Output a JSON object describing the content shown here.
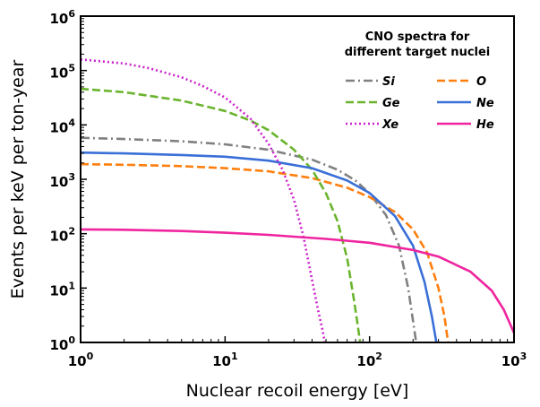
{
  "chart_data": {
    "type": "line",
    "x_scale": "log",
    "y_scale": "log",
    "xlabel": "Nuclear recoil energy [eV]",
    "ylabel": "Events per keV per ton-year",
    "xlim": [
      1,
      1000
    ],
    "ylim": [
      1,
      1000000
    ],
    "x_ticks": [
      {
        "value": 1,
        "base": "10",
        "exp": "0"
      },
      {
        "value": 10,
        "base": "10",
        "exp": "1"
      },
      {
        "value": 100,
        "base": "10",
        "exp": "2"
      },
      {
        "value": 1000,
        "base": "10",
        "exp": "3"
      }
    ],
    "y_ticks": [
      {
        "value": 1,
        "base": "10",
        "exp": "0"
      },
      {
        "value": 10,
        "base": "10",
        "exp": "1"
      },
      {
        "value": 100,
        "base": "10",
        "exp": "2"
      },
      {
        "value": 1000,
        "base": "10",
        "exp": "3"
      },
      {
        "value": 10000,
        "base": "10",
        "exp": "4"
      },
      {
        "value": 100000,
        "base": "10",
        "exp": "5"
      },
      {
        "value": 1000000,
        "base": "10",
        "exp": "6"
      }
    ],
    "legend": {
      "title_line1": "CNO spectra for",
      "title_line2": "different target nuclei",
      "placement": "top-right"
    },
    "series": [
      {
        "name": "Si",
        "color": "#808080",
        "dash": "dashdot",
        "x": [
          1,
          2,
          5,
          10,
          20,
          40,
          60,
          80,
          100,
          130,
          160,
          185,
          200,
          210
        ],
        "y": [
          5800,
          5500,
          5000,
          4400,
          3500,
          2300,
          1500,
          950,
          550,
          220,
          60,
          10,
          2.5,
          1
        ]
      },
      {
        "name": "O",
        "color": "#ff7f0e",
        "dash": "dashed",
        "x": [
          1,
          2,
          5,
          10,
          20,
          40,
          70,
          100,
          150,
          200,
          250,
          300,
          330,
          350
        ],
        "y": [
          1900,
          1850,
          1750,
          1600,
          1400,
          1050,
          700,
          470,
          250,
          120,
          45,
          10,
          3,
          1
        ]
      },
      {
        "name": "Ge",
        "color": "#6ab42d",
        "dash": "dashed",
        "x": [
          1,
          2,
          5,
          10,
          15,
          20,
          30,
          40,
          50,
          60,
          70,
          78,
          83,
          86
        ],
        "y": [
          46000,
          40000,
          28000,
          18000,
          12000,
          8000,
          3500,
          1500,
          550,
          170,
          35,
          6,
          2,
          1
        ]
      },
      {
        "name": "Ne",
        "color": "#3a6fd8",
        "dash": "solid",
        "x": [
          1,
          2,
          5,
          10,
          20,
          40,
          70,
          100,
          150,
          200,
          240,
          270,
          290
        ],
        "y": [
          3100,
          3000,
          2800,
          2600,
          2200,
          1600,
          950,
          560,
          210,
          60,
          13,
          3,
          1
        ]
      },
      {
        "name": "Xe",
        "color": "#cc22cc",
        "dash": "dotted",
        "x": [
          1,
          2,
          3,
          5,
          7,
          10,
          15,
          20,
          25,
          30,
          35,
          40,
          44,
          47,
          49
        ],
        "y": [
          160000,
          135000,
          110000,
          75000,
          52000,
          32000,
          13000,
          4500,
          1500,
          420,
          85,
          14,
          4,
          1.8,
          1
        ]
      },
      {
        "name": "He",
        "color": "#f0249f",
        "dash": "solid",
        "x": [
          1,
          2,
          5,
          10,
          20,
          50,
          100,
          200,
          300,
          500,
          700,
          850,
          1000
        ],
        "y": [
          120,
          118,
          112,
          104,
          95,
          80,
          68,
          50,
          38,
          20,
          9,
          4,
          1.5
        ]
      }
    ]
  }
}
